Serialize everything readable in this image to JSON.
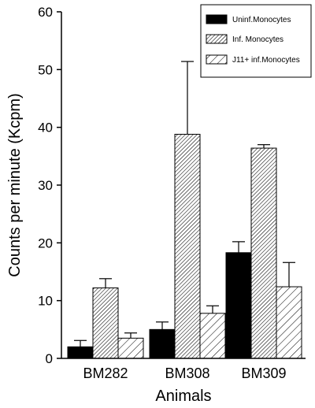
{
  "chart_data": {
    "type": "bar",
    "title": "",
    "xlabel": "Animals",
    "ylabel": "Counts per minute (Kcpm)",
    "ylim": [
      0,
      60
    ],
    "yticks": [
      "0",
      "10",
      "20",
      "30",
      "40",
      "50",
      "60"
    ],
    "categories": [
      "BM282",
      "BM308",
      "BM309"
    ],
    "series": [
      {
        "name": "Uninf.Monocytes",
        "values": [
          2.0,
          5.0,
          18.3
        ],
        "errors": [
          1.1,
          1.3,
          1.9
        ],
        "fill": "solid",
        "color": "#000000"
      },
      {
        "name": "Inf. Monocytes",
        "values": [
          12.2,
          38.8,
          36.4
        ],
        "errors": [
          1.6,
          12.6,
          0.6
        ],
        "fill": "dense-hatch",
        "color": "#000000"
      },
      {
        "name": "J11+ inf.Monocytes",
        "values": [
          3.5,
          7.8,
          12.4
        ],
        "errors": [
          0.9,
          1.3,
          4.2
        ],
        "fill": "sparse-hatch",
        "color": "#000000"
      }
    ],
    "legend_position": "top-right",
    "grid": false
  }
}
